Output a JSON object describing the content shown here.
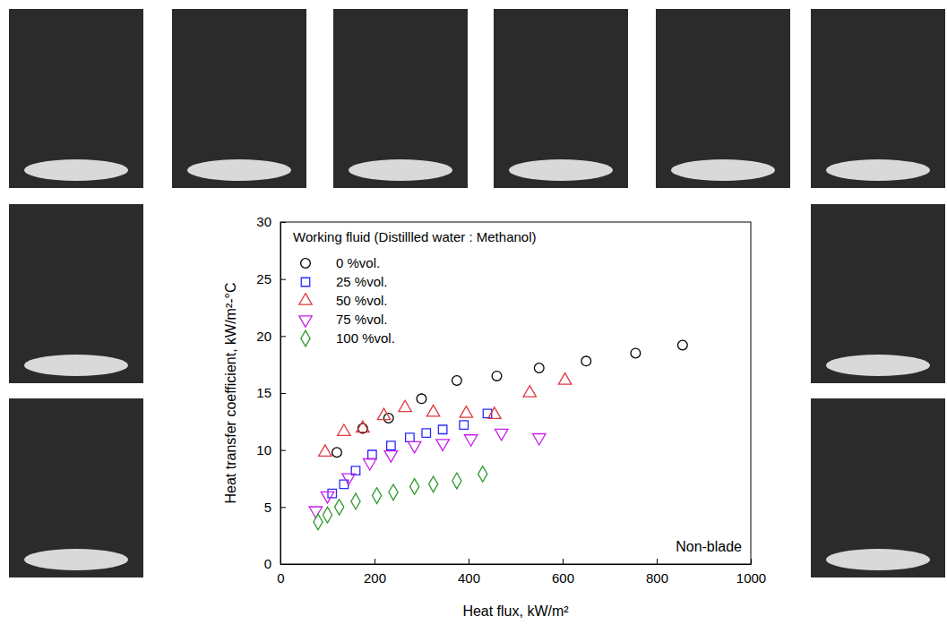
{
  "chart_data": {
    "type": "scatter",
    "x_label": "Heat flux, kW/m²",
    "y_label": "Heat transfer coefficient, kW/m²-°C",
    "legend_title": "Working fluid (Distillled water : Methanol)",
    "legend": "upper left",
    "annotations": [
      {
        "text": "Non-blade"
      }
    ],
    "xlim": [
      0,
      1000
    ],
    "xticks": [
      0,
      200,
      400,
      600,
      800,
      1000
    ],
    "ylim": [
      0,
      30
    ],
    "yticks": [
      0,
      5,
      10,
      15,
      20,
      25,
      30
    ],
    "grid": false,
    "series": [
      {
        "name": "0 %vol.",
        "color": "#000000",
        "marker": "circle",
        "x": [
          120,
          175,
          230,
          300,
          375,
          460,
          550,
          650,
          755,
          855
        ],
        "values": [
          9.8,
          11.9,
          12.8,
          14.5,
          16.1,
          16.5,
          17.2,
          17.8,
          18.5,
          19.2
        ]
      },
      {
        "name": "25 %vol.",
        "color": "#2a2aff",
        "marker": "square",
        "x": [
          110,
          135,
          160,
          195,
          235,
          275,
          310,
          345,
          390,
          440
        ],
        "values": [
          6.2,
          7.0,
          8.2,
          9.6,
          10.4,
          11.1,
          11.5,
          11.8,
          12.2,
          13.2
        ]
      },
      {
        "name": "50 %vol.",
        "color": "#e0393e",
        "marker": "triangle",
        "x": [
          95,
          135,
          175,
          220,
          265,
          325,
          395,
          455,
          530,
          605
        ],
        "values": [
          9.8,
          11.6,
          11.9,
          13.0,
          13.7,
          13.3,
          13.2,
          13.1,
          15.0,
          16.1
        ]
      },
      {
        "name": "75 %vol.",
        "color": "#c81ee8",
        "marker": "triangle-down",
        "x": [
          75,
          100,
          145,
          190,
          235,
          285,
          345,
          405,
          470,
          550
        ],
        "values": [
          4.7,
          6.0,
          7.6,
          8.9,
          9.6,
          10.4,
          10.6,
          11.0,
          11.5,
          11.1
        ]
      },
      {
        "name": "100 %vol.",
        "color": "#2e9a2e",
        "marker": "diamond",
        "x": [
          80,
          100,
          125,
          160,
          205,
          240,
          285,
          325,
          375,
          430
        ],
        "values": [
          3.7,
          4.3,
          5.0,
          5.5,
          6.0,
          6.3,
          6.8,
          7.0,
          7.3,
          7.9
        ]
      }
    ]
  }
}
